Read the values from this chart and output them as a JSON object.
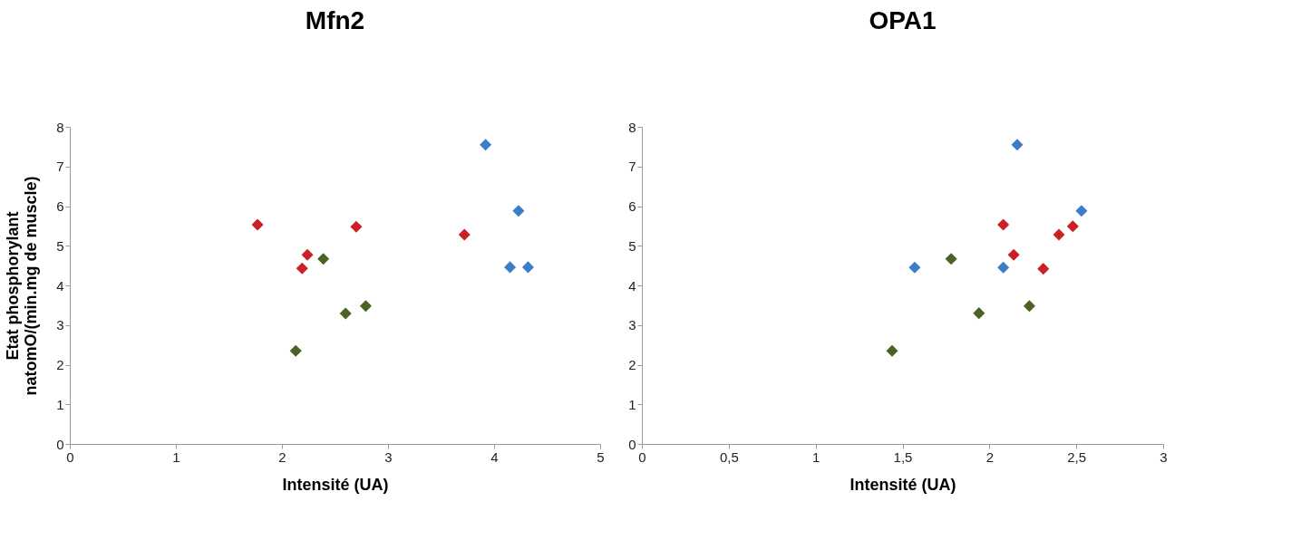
{
  "chart_data": [
    {
      "type": "scatter",
      "title": "Mfn2",
      "xlabel": "Intensité (UA)",
      "ylabel": "Etat phosphorylant\nnatomO/(min.mg de muscle)",
      "marker": "diamond",
      "grid": false,
      "legend": false,
      "xlim": [
        0,
        5
      ],
      "xticks": [
        0,
        1,
        2,
        3,
        4,
        5
      ],
      "ylim": [
        0,
        8
      ],
      "yticks": [
        0,
        1,
        2,
        3,
        4,
        5,
        6,
        7,
        8
      ],
      "series": [
        {
          "color": "#cc1f27",
          "x": [
            1.77,
            2.19,
            2.24,
            2.7,
            3.72
          ],
          "values": [
            5.53,
            4.43,
            4.77,
            5.48,
            5.28
          ]
        },
        {
          "color": "#4a6324",
          "x": [
            2.13,
            2.39,
            2.6,
            2.79
          ],
          "values": [
            2.35,
            4.67,
            3.29,
            3.48
          ]
        },
        {
          "color": "#3b7dc8",
          "x": [
            3.92,
            4.23,
            4.15,
            4.32
          ],
          "values": [
            7.55,
            5.88,
            4.46,
            4.46
          ]
        }
      ]
    },
    {
      "type": "scatter",
      "title": "OPA1",
      "xlabel": "Intensité (UA)",
      "marker": "diamond",
      "grid": false,
      "legend": false,
      "xlim": [
        0,
        3
      ],
      "xticks": [
        0,
        {
          "value": 0.5,
          "label": "0,5"
        },
        1,
        {
          "value": 1.5,
          "label": "1,5"
        },
        2,
        {
          "value": 2.5,
          "label": "2,5"
        },
        3
      ],
      "ylim": [
        0,
        8
      ],
      "yticks": [
        0,
        1,
        2,
        3,
        4,
        5,
        6,
        7,
        8
      ],
      "series": [
        {
          "color": "#cc1f27",
          "x": [
            2.08,
            2.14,
            2.31,
            2.4,
            2.48
          ],
          "values": [
            5.53,
            4.77,
            4.42,
            5.28,
            5.49
          ]
        },
        {
          "color": "#4a6324",
          "x": [
            1.44,
            1.78,
            1.94,
            2.23
          ],
          "values": [
            2.35,
            4.67,
            3.3,
            3.48
          ]
        },
        {
          "color": "#3b7dc8",
          "x": [
            1.57,
            2.08,
            2.16,
            2.53
          ],
          "values": [
            4.45,
            4.45,
            7.55,
            5.88
          ]
        }
      ]
    }
  ]
}
